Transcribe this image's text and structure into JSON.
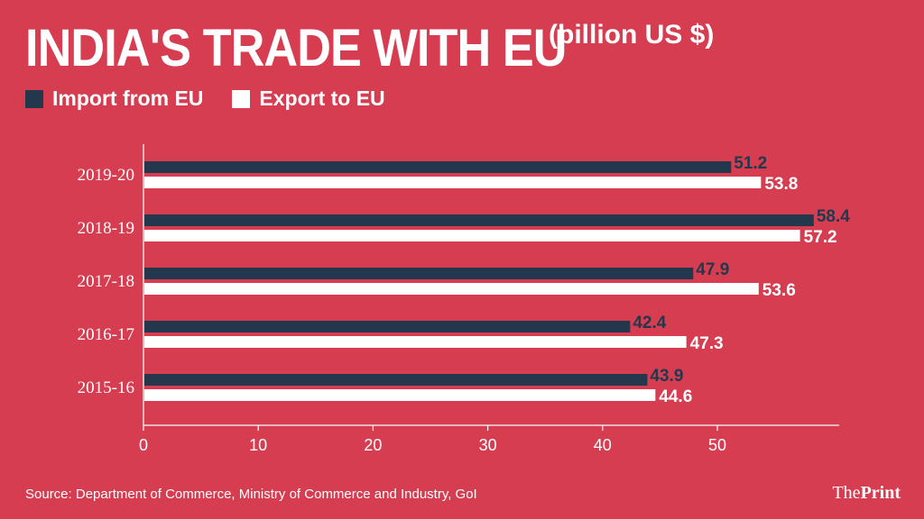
{
  "header": {
    "title": "INDIA'S TRADE WITH EU",
    "unit": "(billion US $)"
  },
  "legend": {
    "import_label": "Import from EU",
    "export_label": "Export to EU"
  },
  "colors": {
    "background": "#d63d50",
    "import": "#24384d",
    "export": "#ffffff",
    "label_import": "#24384d",
    "label_export": "#ffffff"
  },
  "footer": {
    "source": "Source: Department of Commerce, Ministry of Commerce and Industry, GoI",
    "brand_the": "The",
    "brand_print": "Print"
  },
  "chart_data": {
    "type": "bar",
    "orientation": "horizontal",
    "categories": [
      "2019-20",
      "2018-19",
      "2017-18",
      "2016-17",
      "2015-16"
    ],
    "series": [
      {
        "name": "Import from EU",
        "values": [
          51.2,
          58.4,
          47.9,
          42.4,
          43.9
        ]
      },
      {
        "name": "Export to EU",
        "values": [
          53.8,
          57.2,
          53.6,
          47.3,
          44.6
        ]
      }
    ],
    "xticks": [
      0,
      10,
      20,
      30,
      40,
      50
    ],
    "xlim": [
      0,
      60
    ],
    "grid": false,
    "legend_position": "top-left"
  }
}
